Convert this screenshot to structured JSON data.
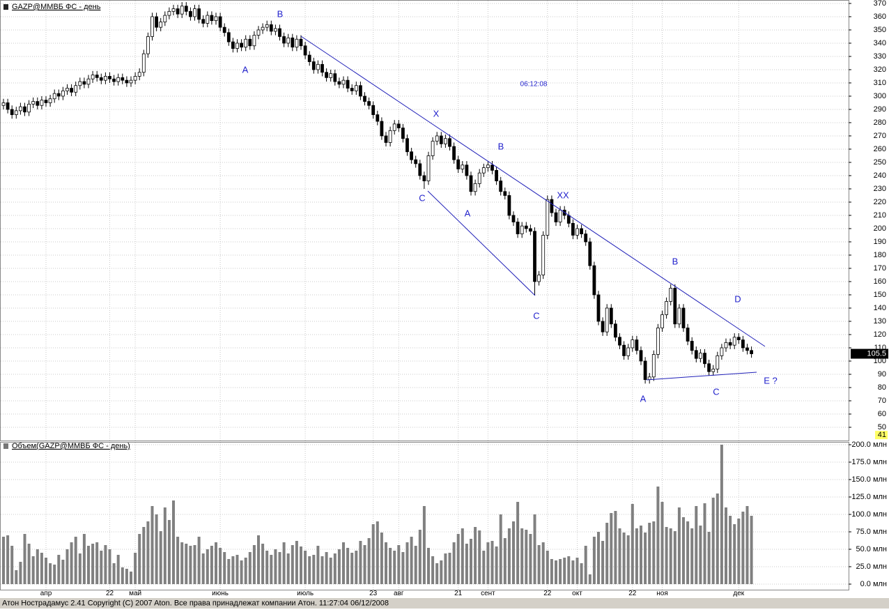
{
  "chart_data": {
    "type": "candlestick",
    "title": "GAZP@ММВБ ФС - день",
    "categories": [
      null,
      null,
      null,
      null,
      null,
      null,
      null,
      null,
      null,
      null,
      "апр",
      null,
      null,
      null,
      null,
      null,
      null,
      null,
      null,
      null,
      null,
      null,
      null,
      null,
      null,
      "22",
      null,
      null,
      null,
      null,
      null,
      "май",
      null,
      null,
      null,
      null,
      null,
      null,
      null,
      null,
      null,
      null,
      null,
      null,
      null,
      null,
      null,
      null,
      null,
      null,
      null,
      "июнь",
      null,
      null,
      null,
      null,
      null,
      null,
      null,
      null,
      null,
      null,
      null,
      null,
      null,
      null,
      null,
      null,
      null,
      null,
      null,
      "июль",
      null,
      null,
      null,
      null,
      null,
      null,
      null,
      null,
      null,
      null,
      null,
      null,
      null,
      null,
      null,
      "23",
      null,
      null,
      null,
      null,
      null,
      "авг",
      null,
      null,
      null,
      null,
      null,
      null,
      null,
      null,
      null,
      null,
      null,
      null,
      null,
      "21",
      null,
      null,
      null,
      null,
      null,
      null,
      "сент",
      null,
      null,
      null,
      null,
      null,
      null,
      null,
      null,
      null,
      null,
      null,
      null,
      null,
      "22",
      null,
      null,
      null,
      null,
      null,
      null,
      "окт",
      null,
      null,
      null,
      null,
      null,
      null,
      null,
      null,
      null,
      null,
      null,
      null,
      "22",
      null,
      null,
      null,
      null,
      null,
      null,
      "ноя",
      null,
      null,
      null,
      null,
      null,
      null,
      null,
      null,
      null,
      null,
      null,
      null,
      null,
      null,
      null,
      null,
      null,
      "дек",
      null,
      null,
      null
    ],
    "open": [
      293,
      295,
      290,
      286,
      289,
      292,
      288,
      294,
      296,
      293,
      297,
      295,
      298,
      302,
      300,
      304,
      306,
      303,
      308,
      311,
      309,
      313,
      316,
      314,
      312,
      315,
      313,
      311,
      314,
      312,
      310,
      312,
      315,
      318,
      332,
      345,
      360,
      352,
      356,
      361,
      364,
      366,
      362,
      368,
      364,
      360,
      366,
      358,
      355,
      361,
      357,
      360,
      352,
      348,
      341,
      336,
      340,
      337,
      343,
      338,
      346,
      350,
      352,
      354,
      349,
      351,
      345,
      340,
      344,
      337,
      343,
      338,
      331,
      326,
      320,
      324,
      318,
      314,
      317,
      311,
      309,
      312,
      306,
      304,
      308,
      300,
      296,
      293,
      286,
      281,
      270,
      265,
      274,
      279,
      276,
      268,
      258,
      252,
      249,
      240,
      236,
      255,
      266,
      270,
      264,
      268,
      262,
      252,
      245,
      248,
      240,
      228,
      234,
      242,
      246,
      248,
      244,
      236,
      228,
      225,
      210,
      205,
      196,
      202,
      200,
      198,
      160,
      165,
      195,
      222,
      212,
      205,
      214,
      210,
      204,
      195,
      200,
      196,
      190,
      172,
      150,
      130,
      122,
      140,
      128,
      118,
      112,
      104,
      110,
      116,
      108,
      100,
      86,
      88,
      105,
      125,
      135,
      145,
      155,
      128,
      140,
      125,
      115,
      108,
      102,
      106,
      98,
      92,
      94,
      104,
      110,
      114,
      112,
      118,
      116,
      110,
      108
    ],
    "high": [
      298,
      298,
      293,
      292,
      295,
      295,
      297,
      299,
      299,
      300,
      300,
      301,
      305,
      305,
      307,
      309,
      309,
      311,
      314,
      314,
      316,
      319,
      319,
      317,
      318,
      318,
      316,
      317,
      317,
      315,
      315,
      318,
      321,
      335,
      348,
      363,
      363,
      359,
      364,
      367,
      369,
      369,
      371,
      371,
      367,
      369,
      369,
      361,
      364,
      364,
      363,
      363,
      355,
      351,
      344,
      343,
      343,
      346,
      346,
      349,
      353,
      355,
      357,
      357,
      354,
      354,
      348,
      347,
      347,
      346,
      346,
      341,
      334,
      329,
      327,
      327,
      321,
      320,
      320,
      314,
      315,
      315,
      309,
      311,
      311,
      303,
      299,
      296,
      289,
      284,
      273,
      277,
      282,
      282,
      279,
      271,
      261,
      255,
      252,
      243,
      258,
      269,
      273,
      273,
      271,
      271,
      265,
      255,
      251,
      251,
      243,
      237,
      245,
      249,
      251,
      251,
      247,
      239,
      231,
      228,
      213,
      208,
      205,
      205,
      203,
      201,
      168,
      198,
      225,
      225,
      215,
      217,
      217,
      213,
      207,
      203,
      203,
      199,
      193,
      175,
      153,
      133,
      143,
      143,
      131,
      121,
      115,
      113,
      119,
      119,
      111,
      103,
      91,
      108,
      128,
      138,
      148,
      158,
      158,
      143,
      143,
      128,
      118,
      111,
      109,
      109,
      101,
      97,
      107,
      113,
      117,
      117,
      121,
      121,
      119,
      113,
      111
    ],
    "low": [
      290,
      287,
      283,
      283,
      286,
      285,
      285,
      291,
      290,
      290,
      292,
      292,
      295,
      297,
      297,
      301,
      300,
      300,
      305,
      306,
      306,
      310,
      311,
      309,
      309,
      310,
      308,
      308,
      309,
      307,
      307,
      309,
      312,
      315,
      329,
      342,
      349,
      349,
      353,
      358,
      361,
      359,
      359,
      361,
      357,
      357,
      355,
      352,
      352,
      354,
      354,
      349,
      345,
      338,
      333,
      333,
      334,
      334,
      335,
      335,
      343,
      347,
      349,
      346,
      346,
      342,
      337,
      337,
      334,
      334,
      335,
      328,
      323,
      317,
      317,
      315,
      311,
      311,
      308,
      306,
      306,
      303,
      301,
      301,
      297,
      293,
      290,
      283,
      278,
      267,
      262,
      262,
      271,
      273,
      265,
      255,
      249,
      246,
      237,
      230,
      233,
      252,
      263,
      261,
      261,
      259,
      249,
      242,
      242,
      237,
      225,
      225,
      231,
      239,
      243,
      241,
      233,
      225,
      222,
      207,
      202,
      193,
      193,
      197,
      195,
      150,
      157,
      162,
      192,
      209,
      202,
      202,
      207,
      201,
      192,
      192,
      193,
      187,
      169,
      147,
      127,
      119,
      119,
      125,
      115,
      109,
      101,
      101,
      107,
      105,
      97,
      83,
      83,
      85,
      102,
      122,
      132,
      142,
      125,
      125,
      122,
      112,
      105,
      99,
      99,
      95,
      89,
      89,
      91,
      101,
      107,
      109,
      109,
      113,
      107,
      105,
      102.5
    ],
    "close": [
      295,
      290,
      286,
      289,
      292,
      288,
      294,
      296,
      293,
      297,
      295,
      298,
      302,
      300,
      304,
      306,
      303,
      308,
      311,
      309,
      313,
      316,
      314,
      312,
      315,
      313,
      311,
      314,
      312,
      310,
      312,
      315,
      318,
      332,
      345,
      360,
      352,
      356,
      361,
      364,
      366,
      362,
      368,
      364,
      360,
      366,
      358,
      355,
      361,
      357,
      360,
      352,
      348,
      341,
      336,
      340,
      337,
      343,
      338,
      346,
      350,
      352,
      354,
      349,
      351,
      345,
      340,
      344,
      337,
      343,
      338,
      331,
      326,
      320,
      324,
      318,
      314,
      317,
      311,
      309,
      312,
      306,
      304,
      308,
      300,
      296,
      293,
      286,
      281,
      270,
      265,
      274,
      279,
      276,
      268,
      258,
      252,
      249,
      240,
      236,
      255,
      266,
      270,
      264,
      268,
      262,
      252,
      245,
      248,
      240,
      228,
      234,
      242,
      246,
      248,
      244,
      236,
      228,
      225,
      210,
      205,
      196,
      202,
      200,
      198,
      160,
      165,
      195,
      222,
      212,
      205,
      214,
      210,
      204,
      195,
      200,
      196,
      190,
      172,
      150,
      130,
      122,
      140,
      128,
      118,
      112,
      104,
      110,
      116,
      108,
      100,
      86,
      88,
      105,
      125,
      135,
      145,
      155,
      128,
      140,
      125,
      115,
      108,
      102,
      106,
      98,
      92,
      94,
      104,
      110,
      114,
      112,
      118,
      116,
      110,
      108,
      105.5
    ],
    "up_color": "#ffffff",
    "down_color": "#000000",
    "grid": true,
    "ylim": [
      40,
      372.6
    ],
    "yticks": [
      50,
      60,
      70,
      80,
      90,
      100,
      110,
      120,
      130,
      140,
      150,
      160,
      170,
      180,
      190,
      200,
      210,
      220,
      230,
      240,
      250,
      260,
      270,
      280,
      290,
      300,
      310,
      320,
      330,
      340,
      350,
      360,
      370
    ],
    "last_price": 105.5,
    "marker": 41,
    "volume": {
      "title": "Объем(GAZP@ММВБ ФС - день)",
      "color": "#808080",
      "ylim": [
        -8,
        204
      ],
      "yticks": [
        {
          "value": 0,
          "label": "0.0 млн"
        },
        {
          "value": 25,
          "label": "25.0 млн"
        },
        {
          "value": 50,
          "label": "50.0 млн"
        },
        {
          "value": 75,
          "label": "75.0 млн"
        },
        {
          "value": 100,
          "label": "100.0 млн"
        },
        {
          "value": 125,
          "label": "125.0 млн"
        },
        {
          "value": 150,
          "label": "150.0 млн"
        },
        {
          "value": 175,
          "label": "175.0 млн"
        },
        {
          "value": 200,
          "label": "200.0 млн"
        }
      ],
      "values": [
        68,
        70,
        55,
        20,
        32,
        72,
        58,
        40,
        50,
        45,
        38,
        30,
        28,
        42,
        35,
        50,
        60,
        68,
        44,
        72,
        55,
        58,
        60,
        48,
        56,
        50,
        30,
        42,
        24,
        22,
        18,
        45,
        72,
        82,
        90,
        112,
        100,
        76,
        110,
        92,
        120,
        68,
        60,
        58,
        55,
        56,
        68,
        44,
        50,
        55,
        60,
        52,
        46,
        36,
        40,
        42,
        34,
        38,
        46,
        56,
        70,
        58,
        48,
        42,
        50,
        46,
        60,
        44,
        56,
        62,
        54,
        48,
        40,
        42,
        55,
        40,
        46,
        38,
        44,
        50,
        60,
        52,
        45,
        48,
        62,
        56,
        66,
        86,
        90,
        74,
        60,
        52,
        48,
        56,
        46,
        60,
        68,
        55,
        78,
        112,
        52,
        40,
        30,
        34,
        44,
        45,
        60,
        72,
        80,
        58,
        65,
        82,
        77,
        48,
        60,
        62,
        54,
        100,
        66,
        80,
        90,
        118,
        80,
        78,
        72,
        100,
        56,
        60,
        48,
        36,
        34,
        36,
        38,
        40,
        34,
        38,
        30,
        55,
        14,
        68,
        75,
        62,
        88,
        102,
        105,
        80,
        74,
        70,
        115,
        80,
        84,
        74,
        88,
        90,
        140,
        118,
        82,
        80,
        76,
        110,
        96,
        90,
        80,
        112,
        84,
        116,
        75,
        124,
        130,
        200,
        110,
        98,
        86,
        94,
        104,
        112,
        98
      ]
    }
  },
  "annotations": [
    "B",
    "A",
    "X",
    "B",
    "C",
    "A",
    "XX",
    "C",
    "B",
    "D",
    "A",
    "C",
    "E ?"
  ],
  "timestamp": "06:12:08",
  "status": "Атон Нострадамус 2.41 Copyright (C) 2007 Aton. Все права принадлежат компании Атон. 11:27:04 06/12/2008"
}
